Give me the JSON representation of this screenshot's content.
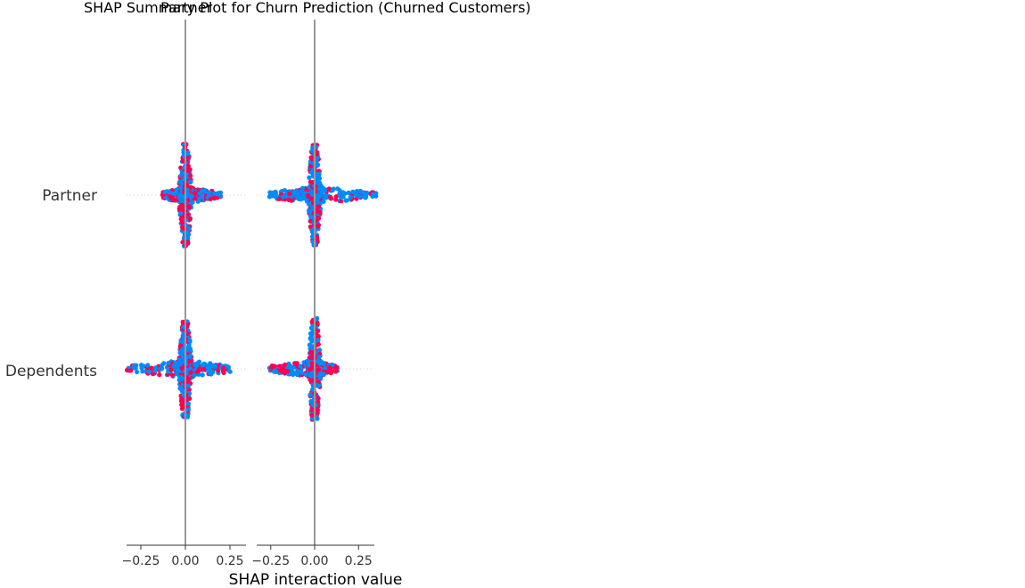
{
  "chart_data": {
    "type": "scatter",
    "titles": [
      "SHAP Summary Plot for Churn Prediction (Churned Customers)",
      "Partner"
    ],
    "xlabel": "SHAP interaction value",
    "features": [
      "Partner",
      "Dependents"
    ],
    "panels": [
      {
        "name": "Partner",
        "xlim": [
          -0.33,
          0.34
        ],
        "xticks": [
          "−0.25",
          "0.00",
          "0.25"
        ]
      },
      {
        "name": "Dependents",
        "xlim": [
          -0.33,
          0.34
        ],
        "xticks": [
          "−0.25",
          "0.00",
          "0.25"
        ]
      }
    ],
    "distributions": [
      {
        "panel": "Partner",
        "feature": "Partner",
        "x_range": [
          -0.13,
          0.2
        ],
        "vertical_extent": 0.48,
        "horizontal_extent": 0.2
      },
      {
        "panel": "Dependents",
        "feature": "Partner",
        "x_range": [
          -0.26,
          0.35
        ],
        "vertical_extent": 0.47,
        "horizontal_extent": 0.35
      },
      {
        "panel": "Partner",
        "feature": "Dependents",
        "x_range": [
          -0.33,
          0.27
        ],
        "vertical_extent": 0.45,
        "horizontal_extent": 0.3
      },
      {
        "panel": "Dependents",
        "feature": "Dependents",
        "x_range": [
          -0.26,
          0.13
        ],
        "vertical_extent": 0.48,
        "horizontal_extent": 0.12
      }
    ],
    "colors": {
      "high": "#ff0052",
      "low": "#008bfb",
      "zero_line": "#999999",
      "axis": "#333333",
      "grid": "#cccccc"
    },
    "grid": false,
    "legend": "none"
  }
}
